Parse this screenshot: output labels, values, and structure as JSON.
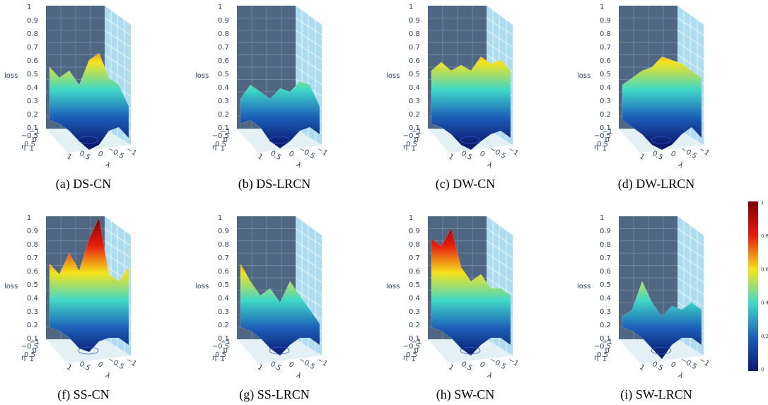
{
  "panels": [
    {
      "caption": "(a) DS-CN"
    },
    {
      "caption": "(b) DS-LRCN"
    },
    {
      "caption": "(c) DW-CN"
    },
    {
      "caption": "(d) DW-LRCN"
    },
    {
      "caption": "(f) SS-CN"
    },
    {
      "caption": "(g) SS-LRCN"
    },
    {
      "caption": "(h) SW-CN"
    },
    {
      "caption": "(i) SW-LRCN"
    }
  ],
  "axes": {
    "z_label": "loss",
    "z_ticks": [
      "1",
      "0.9",
      "0.8",
      "0.7",
      "0.6",
      "0.5",
      "0.4",
      "0.3",
      "0.2",
      "0.1"
    ],
    "eta_label": "η",
    "eta_ticks": [
      "−1",
      "−0.5",
      "0",
      "0.5",
      "1"
    ],
    "lambda_label": "λ",
    "lambda_ticks": [
      "1",
      "0.5",
      "0",
      "−0.5",
      "−1"
    ]
  },
  "colorbar": {
    "ticks": [
      "1",
      "0.8",
      "0.6",
      "0.4",
      "0.2",
      "0"
    ]
  }
}
